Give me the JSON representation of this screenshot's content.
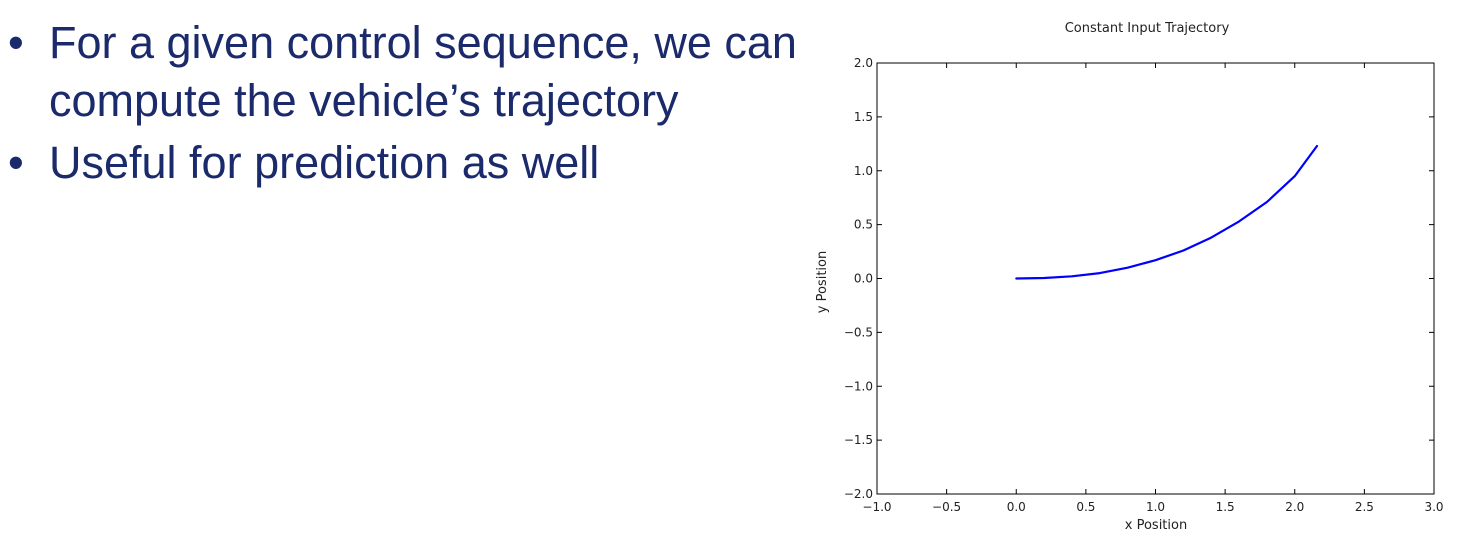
{
  "slide": {
    "bullets": [
      "For a given control sequence, we can compute the vehicle’s trajectory",
      "Useful for prediction as well"
    ],
    "bullet_symbol": "•",
    "text_color": "#1b2a6b"
  },
  "chart_data": {
    "type": "line",
    "title": "Constant Input Trajectory",
    "xlabel": "x Position",
    "ylabel": "y Position",
    "xlim": [
      -1.0,
      3.0
    ],
    "ylim": [
      -2.0,
      2.0
    ],
    "xticks": [
      -1.0,
      -0.5,
      0.0,
      0.5,
      1.0,
      1.5,
      2.0,
      2.5,
      3.0
    ],
    "xtick_labels": [
      "−1.0",
      "−0.5",
      "0.0",
      "0.5",
      "1.0",
      "1.5",
      "2.0",
      "2.5",
      "3.0"
    ],
    "yticks": [
      -2.0,
      -1.5,
      -1.0,
      -0.5,
      0.0,
      0.5,
      1.0,
      1.5,
      2.0
    ],
    "ytick_labels": [
      "−2.0",
      "−1.5",
      "−1.0",
      "−0.5",
      "0.0",
      "0.5",
      "1.0",
      "1.5",
      "2.0"
    ],
    "grid": false,
    "series": [
      {
        "color": "#0000ff",
        "x": [
          0.0,
          0.2,
          0.4,
          0.6,
          0.8,
          1.0,
          1.2,
          1.4,
          1.6,
          1.8,
          2.0,
          2.16
        ],
        "y": [
          0.0,
          0.005,
          0.02,
          0.05,
          0.1,
          0.17,
          0.26,
          0.38,
          0.53,
          0.71,
          0.95,
          1.23
        ]
      }
    ]
  }
}
